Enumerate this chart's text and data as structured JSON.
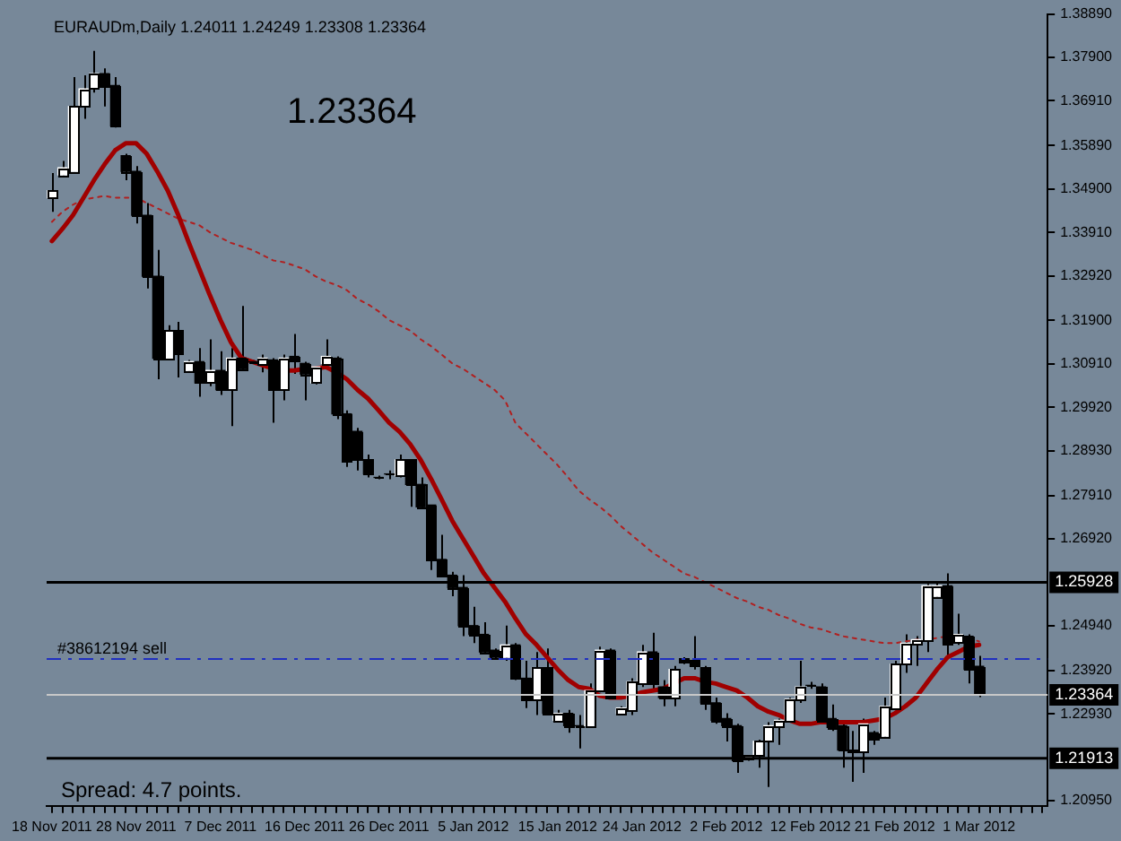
{
  "chart_data": {
    "type": "candlestick",
    "title": "EURAUDm,Daily 1.24011 1.24249 1.23308 1.23364",
    "annotations": [
      "1.23364",
      "Spread: 4.7 points."
    ],
    "categories": [
      "18 Nov 2011",
      null,
      null,
      null,
      null,
      null,
      null,
      null,
      "28 Nov 2011",
      null,
      null,
      null,
      null,
      null,
      null,
      null,
      "7 Dec 2011",
      null,
      null,
      null,
      null,
      null,
      null,
      null,
      "16 Dec 2011",
      null,
      null,
      null,
      null,
      null,
      null,
      null,
      "26 Dec 2011",
      null,
      null,
      null,
      null,
      null,
      null,
      null,
      "5 Jan 2012",
      null,
      null,
      null,
      null,
      null,
      null,
      null,
      "15 Jan 2012",
      null,
      null,
      null,
      null,
      null,
      null,
      null,
      "24 Jan 2012",
      null,
      null,
      null,
      null,
      null,
      null,
      null,
      "2 Feb 2012",
      null,
      null,
      null,
      null,
      null,
      null,
      null,
      "12 Feb 2012",
      null,
      null,
      null,
      null,
      null,
      null,
      null,
      "21 Feb 2012",
      null,
      null,
      null,
      null,
      null,
      null,
      null,
      "1 Mar 2012",
      null,
      null,
      null,
      null,
      null,
      null
    ],
    "ohlc": [
      [
        1.347,
        1.3526,
        1.3438,
        1.3486
      ],
      [
        1.3522,
        1.3554,
        1.3518,
        1.3538
      ],
      [
        1.353,
        1.3745,
        1.353,
        1.3678
      ],
      [
        1.3678,
        1.3749,
        1.365,
        1.3718
      ],
      [
        1.3722,
        1.3805,
        1.371,
        1.3753
      ],
      [
        1.3753,
        1.3765,
        1.3678,
        1.3726
      ],
      [
        1.3726,
        1.3745,
        1.363,
        1.3634
      ],
      [
        1.3566,
        1.357,
        1.351,
        1.353
      ],
      [
        1.353,
        1.3542,
        1.3411,
        1.343
      ],
      [
        1.343,
        1.3458,
        1.3263,
        1.3291
      ],
      [
        1.3291,
        1.3351,
        1.3056,
        1.3104
      ],
      [
        1.3104,
        1.3179,
        1.31,
        1.3167
      ],
      [
        1.3167,
        1.3187,
        1.306,
        1.3116
      ],
      [
        1.3076,
        1.31,
        1.3072,
        1.3096
      ],
      [
        1.3096,
        1.3127,
        1.3016,
        1.3048
      ],
      [
        1.3048,
        1.3147,
        1.304,
        1.3076
      ],
      [
        1.3076,
        1.312,
        1.302,
        1.3032
      ],
      [
        1.3032,
        1.3127,
        1.2949,
        1.3104
      ],
      [
        1.3104,
        1.3223,
        1.3076,
        1.308
      ],
      [
        1.3096,
        1.31,
        1.3092,
        1.3096
      ],
      [
        1.3092,
        1.3112,
        1.3072,
        1.3104
      ],
      [
        1.31,
        1.3104,
        1.2957,
        1.3032
      ],
      [
        1.3032,
        1.3112,
        1.3008,
        1.3104
      ],
      [
        1.3108,
        1.3159,
        1.3068,
        1.31
      ],
      [
        1.3092,
        1.3096,
        1.3008,
        1.3068
      ],
      [
        1.3048,
        1.3084,
        1.3044,
        1.3084
      ],
      [
        1.3092,
        1.3147,
        1.3088,
        1.3108
      ],
      [
        1.3104,
        1.3108,
        1.2965,
        1.2977
      ],
      [
        1.2977,
        1.2985,
        1.2856,
        1.2868
      ],
      [
        1.2937,
        1.2945,
        1.2848,
        1.2872
      ],
      [
        1.2872,
        1.2884,
        1.2832,
        1.284
      ],
      [
        1.2832,
        1.2836,
        1.2828,
        1.2832
      ],
      [
        1.284,
        1.2848,
        1.2828,
        1.284
      ],
      [
        1.2836,
        1.2884,
        1.2832,
        1.2872
      ],
      [
        1.2872,
        1.2872,
        1.2765,
        1.2816
      ],
      [
        1.2816,
        1.2832,
        1.2761,
        1.2765
      ],
      [
        1.2769,
        1.2769,
        1.2621,
        1.2645
      ],
      [
        1.2645,
        1.2701,
        1.2609,
        1.2609
      ],
      [
        1.2609,
        1.2617,
        1.2561,
        1.2581
      ],
      [
        1.2581,
        1.2609,
        1.247,
        1.2494
      ],
      [
        1.2494,
        1.2537,
        1.2454,
        1.2474
      ],
      [
        1.2474,
        1.2502,
        1.243,
        1.2434
      ],
      [
        1.2438,
        1.2442,
        1.2418,
        1.2422
      ],
      [
        1.2422,
        1.2494,
        1.2414,
        1.245
      ],
      [
        1.245,
        1.2454,
        1.237,
        1.2374
      ],
      [
        1.2374,
        1.2414,
        1.2306,
        1.2326
      ],
      [
        1.2326,
        1.2434,
        1.229,
        1.2398
      ],
      [
        1.2398,
        1.2442,
        1.229,
        1.2294
      ],
      [
        1.2278,
        1.2302,
        1.2274,
        1.2294
      ],
      [
        1.2294,
        1.2302,
        1.225,
        1.2266
      ],
      [
        1.2266,
        1.229,
        1.2214,
        1.2266
      ],
      [
        1.2266,
        1.2362,
        1.2262,
        1.2346
      ],
      [
        1.2346,
        1.2446,
        1.2342,
        1.2438
      ],
      [
        1.2438,
        1.2442,
        1.2326,
        1.233
      ],
      [
        1.2294,
        1.231,
        1.229,
        1.2306
      ],
      [
        1.2302,
        1.2374,
        1.229,
        1.2366
      ],
      [
        1.2362,
        1.245,
        1.2354,
        1.2434
      ],
      [
        1.2434,
        1.2478,
        1.2346,
        1.2362
      ],
      [
        1.2354,
        1.237,
        1.231,
        1.233
      ],
      [
        1.233,
        1.2402,
        1.231,
        1.2394
      ],
      [
        1.2418,
        1.2422,
        1.2406,
        1.241
      ],
      [
        1.2414,
        1.247,
        1.2394,
        1.2402
      ],
      [
        1.2398,
        1.2402,
        1.2302,
        1.2318
      ],
      [
        1.2318,
        1.233,
        1.227,
        1.2278
      ],
      [
        1.2282,
        1.2294,
        1.223,
        1.2266
      ],
      [
        1.2266,
        1.227,
        1.2158,
        1.2186
      ],
      [
        1.219,
        1.2198,
        1.2186,
        1.2198
      ],
      [
        1.2198,
        1.2234,
        1.217,
        1.223
      ],
      [
        1.223,
        1.2274,
        1.2126,
        1.2266
      ],
      [
        1.2266,
        1.2282,
        1.2222,
        1.2278
      ],
      [
        1.2278,
        1.233,
        1.2274,
        1.2326
      ],
      [
        1.2326,
        1.2414,
        1.2318,
        1.2354
      ],
      [
        1.2358,
        1.2366,
        1.235,
        1.2358
      ],
      [
        1.2354,
        1.2362,
        1.2274,
        1.2278
      ],
      [
        1.2282,
        1.2314,
        1.2254,
        1.2262
      ],
      [
        1.2266,
        1.2274,
        1.217,
        1.221
      ],
      [
        1.221,
        1.2254,
        1.2138,
        1.2206
      ],
      [
        1.2206,
        1.2282,
        1.2158,
        1.227
      ],
      [
        1.225,
        1.2254,
        1.2222,
        1.2234
      ],
      [
        1.2242,
        1.233,
        1.2238,
        1.231
      ],
      [
        1.2306,
        1.2414,
        1.2302,
        1.2406
      ],
      [
        1.2406,
        1.2474,
        1.2386,
        1.2454
      ],
      [
        1.2454,
        1.247,
        1.2402,
        1.2462
      ],
      [
        1.2462,
        1.2589,
        1.2434,
        1.2585
      ],
      [
        1.2561,
        1.2593,
        1.2557,
        1.2585
      ],
      [
        1.2585,
        1.2613,
        1.2422,
        1.2454
      ],
      [
        1.2458,
        1.2521,
        1.245,
        1.2474
      ],
      [
        1.247,
        1.2474,
        1.2362,
        1.2394
      ],
      [
        1.24011,
        1.24249,
        1.23308,
        1.23364
      ],
      null,
      null,
      null,
      null,
      null,
      null
    ],
    "colors": [
      "#ffffff",
      "#ffffff",
      "#ffffff",
      "#ffffff",
      "#ffffff",
      "#000000",
      "#000000",
      "#000000",
      "#000000",
      "#000000",
      "#000000",
      "#ffffff",
      "#000000",
      "#ffffff",
      "#000000",
      "#ffffff",
      "#000000",
      "#ffffff",
      "#000000",
      "#000000",
      "#ffffff",
      "#000000",
      "#ffffff",
      "#000000",
      "#000000",
      "#ffffff",
      "#ffffff",
      "#000000",
      "#000000",
      "#000000",
      "#000000",
      "#000000",
      "#000000",
      "#ffffff",
      "#000000",
      "#000000",
      "#000000",
      "#000000",
      "#000000",
      "#000000",
      "#000000",
      "#000000",
      "#000000",
      "#ffffff",
      "#000000",
      "#000000",
      "#ffffff",
      "#000000",
      "#ffffff",
      "#000000",
      "#000000",
      "#ffffff",
      "#ffffff",
      "#000000",
      "#ffffff",
      "#ffffff",
      "#ffffff",
      "#000000",
      "#000000",
      "#ffffff",
      "#000000",
      "#000000",
      "#000000",
      "#000000",
      "#000000",
      "#000000",
      "#ffffff",
      "#ffffff",
      "#ffffff",
      "#ffffff",
      "#ffffff",
      "#ffffff",
      "#000000",
      "#000000",
      "#000000",
      "#000000",
      "#000000",
      "#ffffff",
      "#000000",
      "#ffffff",
      "#ffffff",
      "#ffffff",
      "#ffffff",
      "#ffffff",
      "#ffffff",
      "#000000",
      "#ffffff",
      "#000000",
      "#000000",
      "#000000",
      "#000000",
      "#000000",
      "#000000",
      "#000000",
      "#000000"
    ],
    "series": [
      {
        "type": "line",
        "color": "#a00000",
        "line_style": "solid",
        "values": [
          1.3371,
          1.3399,
          1.343,
          1.347,
          1.351,
          1.3546,
          1.3578,
          1.3594,
          1.3594,
          1.357,
          1.353,
          1.3486,
          1.343,
          1.3367,
          1.3307,
          1.3247,
          1.3191,
          1.314,
          1.3104,
          1.3096,
          1.3088,
          1.308,
          1.3076,
          1.3076,
          1.308,
          1.308,
          1.3084,
          1.3072,
          1.3056,
          1.3032,
          1.3012,
          1.2985,
          1.2957,
          1.2936,
          1.2908,
          1.2872,
          1.2828,
          1.2781,
          1.2733,
          1.2693,
          1.2653,
          1.2613,
          1.2581,
          1.2549,
          1.251,
          1.2474,
          1.245,
          1.2422,
          1.2394,
          1.237,
          1.2354,
          1.235,
          1.2334,
          1.233,
          1.233,
          1.2334,
          1.2342,
          1.2346,
          1.235,
          1.2362,
          1.2374,
          1.2374,
          1.2366,
          1.2362,
          1.2354,
          1.2346,
          1.233,
          1.231,
          1.2298,
          1.229,
          1.2278,
          1.227,
          1.227,
          1.2274,
          1.2274,
          1.2274,
          1.2274,
          1.2274,
          1.2278,
          1.2282,
          1.2294,
          1.231,
          1.233,
          1.2362,
          1.2394,
          1.2422,
          1.2434,
          1.2446,
          1.245,
          null,
          null,
          null,
          null,
          null,
          null
        ]
      },
      {
        "type": "line",
        "color": "#b02020",
        "line_style": "dotted",
        "values": [
          1.3415,
          1.3438,
          1.3454,
          1.3466,
          1.347,
          1.3474,
          1.347,
          1.347,
          1.347,
          1.3458,
          1.3446,
          1.3434,
          1.3422,
          1.3415,
          1.3407,
          1.3391,
          1.3379,
          1.3367,
          1.3359,
          1.3351,
          1.3339,
          1.3327,
          1.3323,
          1.3315,
          1.3307,
          1.3291,
          1.3279,
          1.3271,
          1.3259,
          1.3239,
          1.3227,
          1.3211,
          1.3191,
          1.3179,
          1.3167,
          1.3147,
          1.3131,
          1.3112,
          1.3092,
          1.308,
          1.3064,
          1.3048,
          1.3032,
          1.3008,
          1.2956,
          1.2932,
          1.2908,
          1.2884,
          1.286,
          1.2832,
          1.2802,
          1.2782,
          1.2765,
          1.2745,
          1.2721,
          1.2701,
          1.2681,
          1.2661,
          1.2645,
          1.2629,
          1.2613,
          1.2605,
          1.2593,
          1.2581,
          1.2569,
          1.2557,
          1.2549,
          1.2537,
          1.253,
          1.2518,
          1.251,
          1.2498,
          1.249,
          1.2486,
          1.2478,
          1.247,
          1.2466,
          1.2462,
          1.2458,
          1.2454,
          1.2454,
          1.2458,
          1.2462,
          1.2462,
          1.2466,
          1.247,
          null,
          1.2466,
          1.2458,
          null,
          null,
          null,
          null,
          null,
          null
        ]
      }
    ],
    "ylim": [
      1.2083,
      1.3889
    ],
    "yticks": [
      {
        "value": 1.3889,
        "label": "1.38890"
      },
      {
        "value": 1.379,
        "label": "1.37900"
      },
      {
        "value": 1.3691,
        "label": "1.36910"
      },
      {
        "value": 1.3589,
        "label": "1.35890"
      },
      {
        "value": 1.349,
        "label": "1.34900"
      },
      {
        "value": 1.3391,
        "label": "1.33910"
      },
      {
        "value": 1.3292,
        "label": "1.32920"
      },
      {
        "value": 1.319,
        "label": "1.31900"
      },
      {
        "value": 1.3091,
        "label": "1.30910"
      },
      {
        "value": 1.2992,
        "label": "1.29920"
      },
      {
        "value": 1.2893,
        "label": "1.28930"
      },
      {
        "value": 1.2791,
        "label": "1.27910"
      },
      {
        "value": 1.2692,
        "label": "1.26920"
      },
      {
        "value": 1.2494,
        "label": "1.24940"
      },
      {
        "value": 1.2392,
        "label": "1.23920"
      },
      {
        "value": 1.2293,
        "label": "1.22930"
      },
      {
        "value": 1.2095,
        "label": "1.20950"
      }
    ],
    "ref_lines": [
      {
        "axis": "y",
        "value": 1.25928,
        "label": "1.25928",
        "color": "#000000",
        "line_style": "solid"
      },
      {
        "axis": "y",
        "value": 1.21913,
        "label": "1.21913",
        "color": "#000000",
        "line_style": "solid"
      },
      {
        "axis": "y",
        "value": 1.23364,
        "label": "1.23364",
        "color": "#c8c8c8",
        "line_style": "solid"
      },
      {
        "axis": "y",
        "value": 1.2418,
        "label": "#38612194 sell",
        "color": "#2030c0",
        "line_style": "dashed"
      }
    ],
    "legend": false
  }
}
